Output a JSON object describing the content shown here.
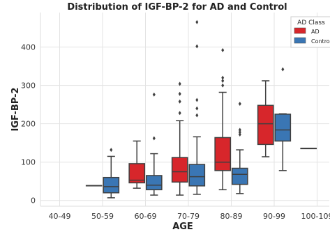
{
  "chart_data": {
    "type": "box",
    "title": "Distribution of IGF-BP-2 for AD and Control",
    "xlabel": "AGE",
    "ylabel": "IGF-BP-2",
    "categories": [
      "40-49",
      "50-59",
      "60-69",
      "70-79",
      "80-89",
      "90-99",
      "100-109"
    ],
    "ylim": [
      -15,
      490
    ],
    "yticks": [
      0,
      100,
      200,
      300,
      400
    ],
    "grid": true,
    "legend": {
      "title": "AD Class",
      "position": "top-right"
    },
    "series": [
      {
        "name": "AD",
        "color": "#d7262b",
        "boxes": [
          null,
          {
            "whislo": 39,
            "q1": 39,
            "med": 39,
            "q3": 39,
            "whishi": 39,
            "fliers": []
          },
          {
            "whislo": 32,
            "q1": 46,
            "med": 53,
            "q3": 96,
            "whishi": 155,
            "fliers": []
          },
          {
            "whislo": 14,
            "q1": 48,
            "med": 75,
            "q3": 112,
            "whishi": 208,
            "fliers": [
              228,
              258,
              278,
              304
            ]
          },
          {
            "whislo": 28,
            "q1": 78,
            "med": 100,
            "q3": 164,
            "whishi": 282,
            "fliers": [
              300,
              312,
              320,
              392
            ]
          },
          {
            "whislo": 114,
            "q1": 146,
            "med": 200,
            "q3": 248,
            "whishi": 312,
            "fliers": []
          },
          {
            "whislo": 136,
            "q1": 136,
            "med": 136,
            "q3": 136,
            "whishi": 136,
            "fliers": []
          }
        ]
      },
      {
        "name": "Control",
        "color": "#3a76b4",
        "boxes": [
          null,
          {
            "whislo": 7,
            "q1": 20,
            "med": 36,
            "q3": 60,
            "whishi": 115,
            "fliers": [
              132
            ]
          },
          {
            "whislo": 14,
            "q1": 28,
            "med": 40,
            "q3": 65,
            "whishi": 122,
            "fliers": [
              162,
              276
            ]
          },
          {
            "whislo": 16,
            "q1": 38,
            "med": 62,
            "q3": 94,
            "whishi": 166,
            "fliers": [
              222,
              240,
              262,
              402,
              465
            ]
          },
          {
            "whislo": 18,
            "q1": 42,
            "med": 68,
            "q3": 84,
            "whishi": 132,
            "fliers": [
              172,
              178,
              184,
              252
            ]
          },
          {
            "whislo": 78,
            "q1": 155,
            "med": 184,
            "q3": 225,
            "whishi": 226,
            "fliers": [
              342
            ]
          },
          null
        ]
      }
    ]
  }
}
